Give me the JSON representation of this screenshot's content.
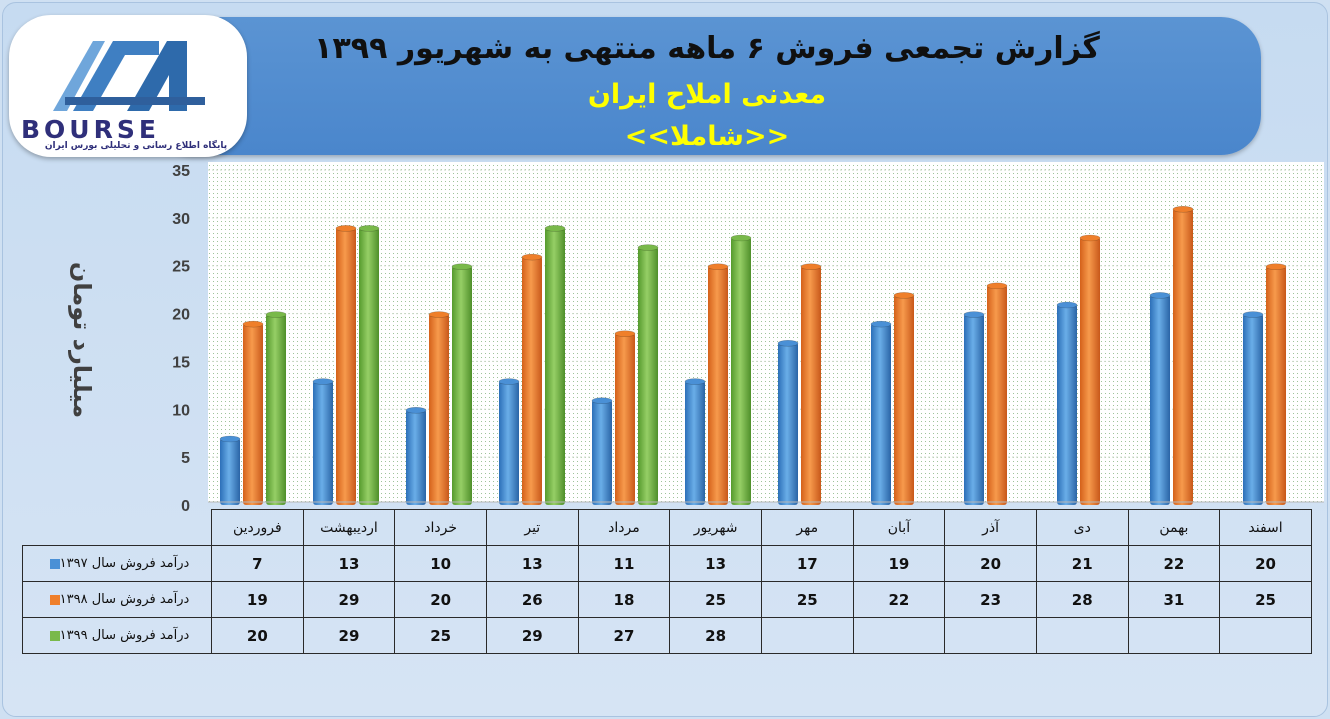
{
  "header": {
    "title": "گزارش تجمعی فروش ۶ ماهه منتهی به شهریور ۱۳۹۹",
    "company": "معدنی املاح ایران",
    "ticker": "<<شاملا>>"
  },
  "logo": {
    "word": "BOURSE",
    "subtitle": "پایگاه اطلاع رسانی و تحلیلی بورس ایران"
  },
  "colors": {
    "s1397": "#4a90d6",
    "s1398": "#ef7f2b",
    "s1399": "#79b94a"
  },
  "chart_data": {
    "type": "bar",
    "title": "گزارش تجمعی فروش ۶ ماهه منتهی به شهریور ۱۳۹۹",
    "ylabel": "میلیارد تومان",
    "ylim": [
      0,
      35
    ],
    "yticks": [
      0,
      5,
      10,
      15,
      20,
      25,
      30,
      35
    ],
    "grid": true,
    "legend": "table-left",
    "categories": [
      "فروردین",
      "اردیبهشت",
      "خرداد",
      "تیر",
      "مرداد",
      "شهریور",
      "مهر",
      "آبان",
      "آذر",
      "دی",
      "بهمن",
      "اسفند"
    ],
    "series": [
      {
        "name": "درآمد فروش سال ۱۳۹۷",
        "color": "#4a90d6",
        "values": [
          7,
          13,
          10,
          13,
          11,
          13,
          17,
          19,
          20,
          21,
          22,
          20
        ]
      },
      {
        "name": "درآمد فروش سال ۱۳۹۸",
        "color": "#ef7f2b",
        "values": [
          19,
          29,
          20,
          26,
          18,
          25,
          25,
          22,
          23,
          28,
          31,
          25
        ]
      },
      {
        "name": "درآمد فروش سال ۱۳۹۹",
        "color": "#79b94a",
        "values": [
          20,
          29,
          25,
          29,
          27,
          28,
          null,
          null,
          null,
          null,
          null,
          null
        ]
      }
    ]
  }
}
